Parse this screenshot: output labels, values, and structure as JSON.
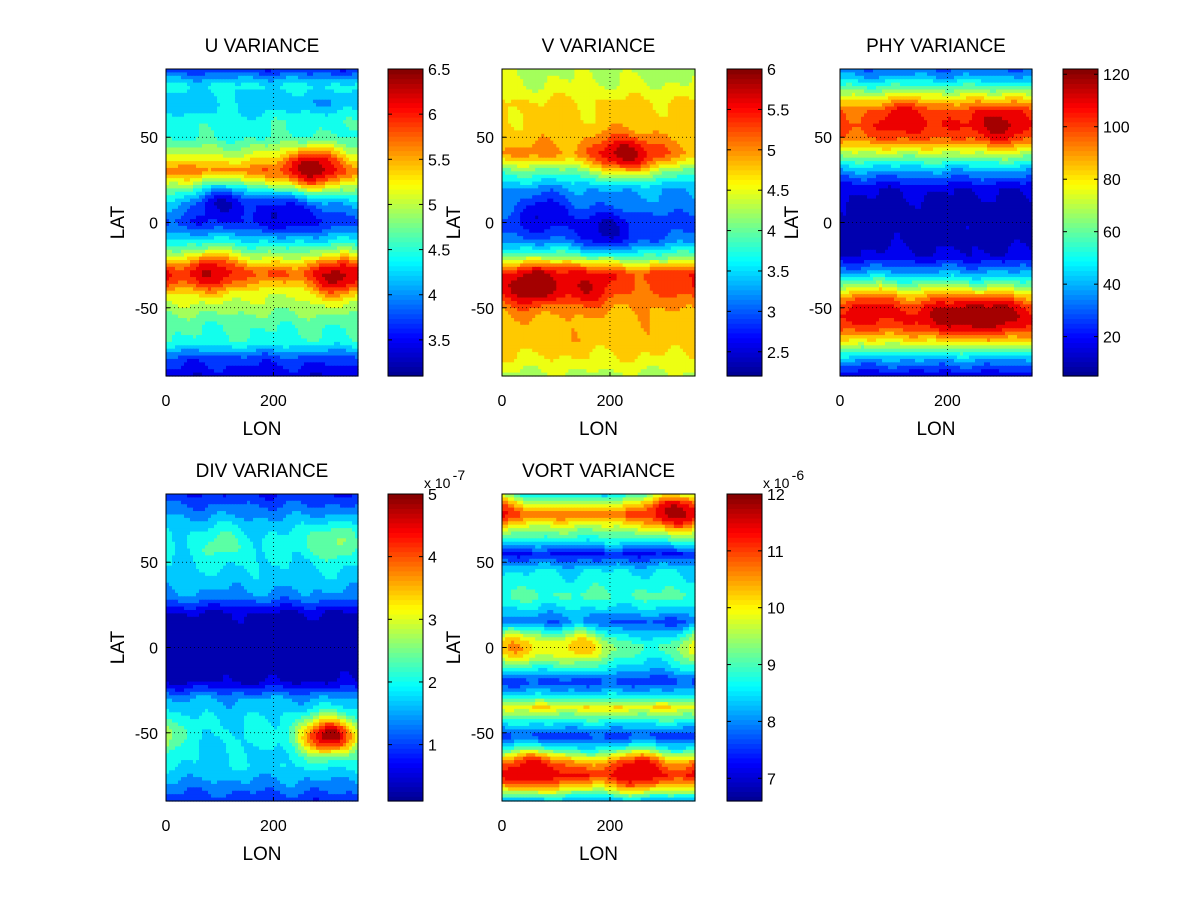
{
  "colormap": [
    "#00008f",
    "#0000ff",
    "#0080ff",
    "#00ffff",
    "#80ff80",
    "#ffff00",
    "#ff8000",
    "#ff0000",
    "#800000"
  ],
  "chart_data": [
    {
      "id": "u",
      "type": "heatmap",
      "title": "U VARIANCE",
      "xlabel": "LON",
      "ylabel": "LAT",
      "xlim": [
        0,
        357.5
      ],
      "ylim": [
        -90,
        90
      ],
      "xticks": [
        0,
        200
      ],
      "yticks": [
        50,
        0,
        -50
      ],
      "x_tick_labels": [
        "0",
        "200"
      ],
      "y_tick_labels": [
        "50",
        "0",
        "-50"
      ],
      "grid": "dotted",
      "colorbar": {
        "min": 3.1,
        "max": 6.5,
        "ticks": [
          3.5,
          4,
          4.5,
          5,
          5.5,
          6,
          6.5
        ],
        "tick_labels": [
          "3.5",
          "4",
          "4.5",
          "5",
          "5.5",
          "6",
          "6.5"
        ],
        "multiplier": ""
      },
      "lat_profile": [
        [
          -90,
          3.4
        ],
        [
          -80,
          3.7
        ],
        [
          -70,
          4.5
        ],
        [
          -60,
          4.6
        ],
        [
          -50,
          4.9
        ],
        [
          -40,
          5.1
        ],
        [
          -30,
          5.8
        ],
        [
          -20,
          4.9
        ],
        [
          -10,
          4.3
        ],
        [
          0,
          3.7
        ],
        [
          10,
          4.1
        ],
        [
          20,
          4.8
        ],
        [
          30,
          5.7
        ],
        [
          40,
          5.0
        ],
        [
          50,
          4.5
        ],
        [
          60,
          4.5
        ],
        [
          70,
          4.1
        ],
        [
          80,
          4.4
        ],
        [
          90,
          3.6
        ]
      ],
      "peaks": [
        {
          "lon": 270,
          "lat": 32,
          "value": 6.4
        },
        {
          "lon": 320,
          "lat": -32,
          "value": 6.3
        },
        {
          "lon": 90,
          "lat": -30,
          "value": 6.2
        },
        {
          "lon": 130,
          "lat": 70,
          "value": 4.3
        },
        {
          "lon": 110,
          "lat": 10,
          "value": 3.3
        },
        {
          "lon": 230,
          "lat": 5,
          "value": 3.3
        }
      ]
    },
    {
      "id": "v",
      "type": "heatmap",
      "title": "V VARIANCE",
      "xlabel": "LON",
      "ylabel": "LAT",
      "xlim": [
        0,
        357.5
      ],
      "ylim": [
        -90,
        90
      ],
      "xticks": [
        0,
        200
      ],
      "yticks": [
        50,
        0,
        -50
      ],
      "x_tick_labels": [
        "0",
        "200"
      ],
      "y_tick_labels": [
        "50",
        "0",
        "-50"
      ],
      "grid": "dotted",
      "colorbar": {
        "min": 2.2,
        "max": 6.0,
        "ticks": [
          2.5,
          3,
          3.5,
          4,
          4.5,
          5,
          5.5,
          6
        ],
        "tick_labels": [
          "2.5",
          "3",
          "3.5",
          "4",
          "4.5",
          "5",
          "5.5",
          "6"
        ],
        "multiplier": ""
      },
      "lat_profile": [
        [
          -90,
          4.3
        ],
        [
          -80,
          4.6
        ],
        [
          -70,
          4.8
        ],
        [
          -60,
          4.8
        ],
        [
          -50,
          4.9
        ],
        [
          -40,
          5.2
        ],
        [
          -30,
          5.3
        ],
        [
          -20,
          4.0
        ],
        [
          -10,
          3.1
        ],
        [
          0,
          2.9
        ],
        [
          10,
          3.2
        ],
        [
          20,
          3.3
        ],
        [
          30,
          4.0
        ],
        [
          40,
          5.0
        ],
        [
          50,
          4.8
        ],
        [
          60,
          4.7
        ],
        [
          70,
          4.7
        ],
        [
          80,
          4.4
        ],
        [
          90,
          4.3
        ]
      ],
      "peaks": [
        {
          "lon": 50,
          "lat": -37,
          "value": 6.0
        },
        {
          "lon": 230,
          "lat": 40,
          "value": 5.9
        },
        {
          "lon": 150,
          "lat": -37,
          "value": 5.7
        },
        {
          "lon": 80,
          "lat": 5,
          "value": 2.5
        },
        {
          "lon": 200,
          "lat": -5,
          "value": 2.4
        }
      ]
    },
    {
      "id": "phy",
      "type": "heatmap",
      "title": "PHY VARIANCE",
      "xlabel": "LON",
      "ylabel": "LAT",
      "xlim": [
        0,
        357.5
      ],
      "ylim": [
        -90,
        90
      ],
      "xticks": [
        0,
        200
      ],
      "yticks": [
        50,
        0,
        -50
      ],
      "x_tick_labels": [
        "0",
        "200"
      ],
      "y_tick_labels": [
        "50",
        "0",
        "-50"
      ],
      "grid": "dotted",
      "colorbar": {
        "min": 5,
        "max": 122,
        "ticks": [
          20,
          40,
          60,
          80,
          100,
          120
        ],
        "tick_labels": [
          "20",
          "40",
          "60",
          "80",
          "100",
          "120"
        ],
        "multiplier": ""
      },
      "lat_profile": [
        [
          -90,
          15
        ],
        [
          -80,
          40
        ],
        [
          -70,
          75
        ],
        [
          -60,
          98
        ],
        [
          -55,
          102
        ],
        [
          -50,
          96
        ],
        [
          -40,
          70
        ],
        [
          -30,
          40
        ],
        [
          -20,
          15
        ],
        [
          -10,
          10
        ],
        [
          0,
          9
        ],
        [
          10,
          10
        ],
        [
          20,
          15
        ],
        [
          30,
          38
        ],
        [
          40,
          68
        ],
        [
          50,
          95
        ],
        [
          57,
          100
        ],
        [
          65,
          95
        ],
        [
          75,
          70
        ],
        [
          85,
          40
        ],
        [
          90,
          30
        ]
      ],
      "peaks": [
        {
          "lon": 210,
          "lat": -55,
          "value": 120
        },
        {
          "lon": 300,
          "lat": -55,
          "value": 118
        },
        {
          "lon": 290,
          "lat": 58,
          "value": 118
        },
        {
          "lon": 130,
          "lat": 60,
          "value": 112
        },
        {
          "lon": 70,
          "lat": -52,
          "value": 110
        }
      ]
    },
    {
      "id": "div",
      "type": "heatmap",
      "title": "DIV VARIANCE",
      "xlabel": "LON",
      "ylabel": "LAT",
      "xlim": [
        0,
        357.5
      ],
      "ylim": [
        -90,
        90
      ],
      "xticks": [
        0,
        200
      ],
      "yticks": [
        50,
        0,
        -50
      ],
      "x_tick_labels": [
        "0",
        "200"
      ],
      "y_tick_labels": [
        "50",
        "0",
        "-50"
      ],
      "grid": "dotted",
      "colorbar": {
        "min": 0.1,
        "max": 5,
        "ticks": [
          1,
          2,
          3,
          4,
          5
        ],
        "tick_labels": [
          "1",
          "2",
          "3",
          "4",
          "5"
        ],
        "multiplier": "x 10",
        "multiplier_exponent": "-7"
      },
      "lat_profile": [
        [
          -90,
          0.9
        ],
        [
          -80,
          1.4
        ],
        [
          -70,
          1.8
        ],
        [
          -60,
          1.8
        ],
        [
          -50,
          1.9
        ],
        [
          -40,
          1.8
        ],
        [
          -30,
          1.5
        ],
        [
          -20,
          0.4
        ],
        [
          -10,
          0.2
        ],
        [
          0,
          0.2
        ],
        [
          10,
          0.2
        ],
        [
          20,
          0.4
        ],
        [
          30,
          1.4
        ],
        [
          40,
          1.7
        ],
        [
          50,
          1.8
        ],
        [
          60,
          1.8
        ],
        [
          70,
          1.7
        ],
        [
          80,
          1.3
        ],
        [
          90,
          0.8
        ]
      ],
      "peaks": [
        {
          "lon": 305,
          "lat": -52,
          "value": 4.9
        },
        {
          "lon": 305,
          "lat": 62,
          "value": 2.6
        },
        {
          "lon": 110,
          "lat": 60,
          "value": 2.3
        }
      ]
    },
    {
      "id": "vort",
      "type": "heatmap",
      "title": "VORT VARIANCE",
      "xlabel": "LON",
      "ylabel": "LAT",
      "xlim": [
        0,
        357.5
      ],
      "ylim": [
        -90,
        90
      ],
      "xticks": [
        0,
        200
      ],
      "yticks": [
        50,
        0,
        -50
      ],
      "x_tick_labels": [
        "0",
        "200"
      ],
      "y_tick_labels": [
        "50",
        "0",
        "-50"
      ],
      "grid": "dotted",
      "colorbar": {
        "min": 6.6,
        "max": 12,
        "ticks": [
          7,
          8,
          9,
          10,
          11,
          12
        ],
        "tick_labels": [
          "7",
          "8",
          "9",
          "10",
          "11",
          "12"
        ],
        "multiplier": "x 10",
        "multiplier_exponent": "-6"
      },
      "lat_profile": [
        [
          -90,
          8.0
        ],
        [
          -85,
          9.2
        ],
        [
          -75,
          11.2
        ],
        [
          -68,
          10.3
        ],
        [
          -60,
          8.5
        ],
        [
          -52,
          7.5
        ],
        [
          -45,
          8.5
        ],
        [
          -35,
          10.0
        ],
        [
          -28,
          8.5
        ],
        [
          -20,
          7.5
        ],
        [
          -12,
          8.3
        ],
        [
          -5,
          8.7
        ],
        [
          0,
          9.0
        ],
        [
          8,
          8.2
        ],
        [
          15,
          7.6
        ],
        [
          22,
          8.4
        ],
        [
          30,
          9.0
        ],
        [
          38,
          8.7
        ],
        [
          45,
          8.5
        ],
        [
          55,
          7.3
        ],
        [
          62,
          8.6
        ],
        [
          70,
          9.5
        ],
        [
          78,
          10.8
        ],
        [
          85,
          9.5
        ],
        [
          90,
          8.5
        ]
      ],
      "peaks": [
        {
          "lon": 320,
          "lat": 80,
          "value": 11.8
        },
        {
          "lon": 60,
          "lat": -72,
          "value": 11.6
        },
        {
          "lon": 250,
          "lat": -72,
          "value": 11.5
        },
        {
          "lon": 30,
          "lat": 0,
          "value": 10.5
        },
        {
          "lon": 150,
          "lat": 0,
          "value": 10.3
        }
      ]
    }
  ]
}
